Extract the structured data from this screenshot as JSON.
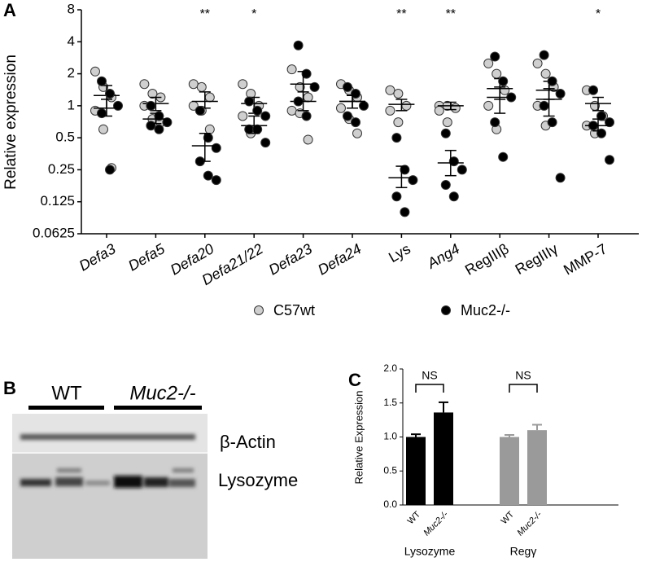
{
  "panel_labels": [
    "A",
    "B",
    "C"
  ],
  "blot": {
    "lanes": [
      "WT",
      "Muc2-/-"
    ],
    "bands": [
      "β-Actin",
      "Lysozyme"
    ]
  },
  "chart_data": [
    {
      "type": "scatter",
      "y_label": "Relative expression",
      "log_scale": true,
      "ylim": [
        0.0625,
        8
      ],
      "yticks": [
        0.0625,
        0.125,
        0.25,
        0.5,
        1,
        2,
        4,
        8
      ],
      "categories": [
        "Defa3",
        "Defa5",
        "Defa20",
        "Defa21/22",
        "Defa23",
        "Defa24",
        "Lys",
        "Ang4",
        "RegIIIβ",
        "RegIIIγ",
        "MMP-7"
      ],
      "italic": [
        true,
        true,
        true,
        true,
        true,
        true,
        false,
        true,
        false,
        false,
        false
      ],
      "significance": [
        null,
        null,
        "**",
        "*",
        null,
        null,
        "**",
        "**",
        null,
        null,
        "*"
      ],
      "series": [
        {
          "name": "C57wt",
          "color": "#cfcfcf",
          "values": [
            [
              2.1,
              1.5,
              1.2,
              0.9,
              0.6,
              0.26
            ],
            [
              1.6,
              1.3,
              1.2,
              1.0,
              0.75,
              0.7
            ],
            [
              1.6,
              1.5,
              1.2,
              1.0,
              0.9,
              0.6
            ],
            [
              1.6,
              1.3,
              1.0,
              0.8,
              0.55
            ],
            [
              2.2,
              1.5,
              1.2,
              0.9,
              0.85,
              0.48
            ],
            [
              1.6,
              1.4,
              1.2,
              0.95,
              0.75,
              0.55
            ],
            [
              1.4,
              1.3,
              1.0,
              0.9,
              0.7
            ],
            [
              1.0,
              1.0,
              0.95,
              0.9,
              0.7
            ],
            [
              2.5,
              2.0,
              1.4,
              1.0,
              0.6
            ],
            [
              2.5,
              2.0,
              1.5,
              1.0,
              0.65
            ],
            [
              1.4,
              1.0,
              0.8,
              0.65,
              0.55
            ]
          ],
          "means": [
            1.25,
            1.05,
            1.1,
            1.05,
            1.1,
            1.1,
            1.03,
            1.0,
            1.45,
            1.4,
            1.05
          ],
          "lower": [
            0.95,
            0.9,
            0.95,
            0.85,
            0.9,
            0.95,
            0.9,
            0.92,
            1.15,
            1.15,
            0.9
          ],
          "upper": [
            1.55,
            1.2,
            1.35,
            1.2,
            1.35,
            1.25,
            1.15,
            1.08,
            1.8,
            1.7,
            1.2
          ]
        },
        {
          "name": "Muc2-/-",
          "color": "#000000",
          "values": [
            [
              1.7,
              1.3,
              1.0,
              0.85,
              0.25
            ],
            [
              1.0,
              0.8,
              0.7,
              0.65,
              0.6
            ],
            [
              0.9,
              0.5,
              0.4,
              0.3,
              0.22,
              0.2
            ],
            [
              1.1,
              0.9,
              0.8,
              0.6,
              0.6,
              0.45
            ],
            [
              3.7,
              2.0,
              1.5,
              1.1,
              0.8
            ],
            [
              1.5,
              1.3,
              1.0,
              0.8,
              0.7
            ],
            [
              0.5,
              0.25,
              0.2,
              0.14,
              0.1
            ],
            [
              0.55,
              0.3,
              0.25,
              0.18,
              0.14
            ],
            [
              2.9,
              1.7,
              1.2,
              0.7,
              0.33
            ],
            [
              3.0,
              1.7,
              1.3,
              1.0,
              0.7,
              0.21
            ],
            [
              1.4,
              0.8,
              0.7,
              0.65,
              0.55,
              0.31
            ]
          ],
          "means": [
            0.95,
            0.75,
            0.42,
            0.65,
            1.6,
            1.1,
            0.21,
            0.29,
            1.2,
            1.15,
            0.65
          ],
          "lower": [
            0.8,
            0.68,
            0.3,
            0.55,
            1.1,
            0.95,
            0.17,
            0.22,
            0.85,
            0.8,
            0.58
          ],
          "upper": [
            1.15,
            0.85,
            0.55,
            0.8,
            2.1,
            1.25,
            0.27,
            0.38,
            1.5,
            1.45,
            0.75
          ]
        }
      ]
    },
    {
      "type": "bar",
      "y_label": "Relative Expression",
      "ylim": [
        0,
        2
      ],
      "yticks": [
        {
          "value": 0,
          "label": "0.0"
        },
        0.5,
        {
          "value": 1,
          "label": "1.0"
        },
        1.5,
        {
          "value": 2,
          "label": "2.0"
        }
      ],
      "groups": [
        {
          "name": "Lysozyme",
          "color": "#000000",
          "categories": [
            "WT",
            "Muc2-/-"
          ],
          "values": [
            1.0,
            1.36
          ],
          "errors": [
            0.04,
            0.15
          ],
          "annotation": "NS"
        },
        {
          "name": "Regγ",
          "color": "#9a9a9a",
          "categories": [
            "WT",
            "Muc2-/-"
          ],
          "values": [
            1.0,
            1.1
          ],
          "errors": [
            0.03,
            0.08
          ],
          "annotation": "NS"
        }
      ]
    }
  ]
}
